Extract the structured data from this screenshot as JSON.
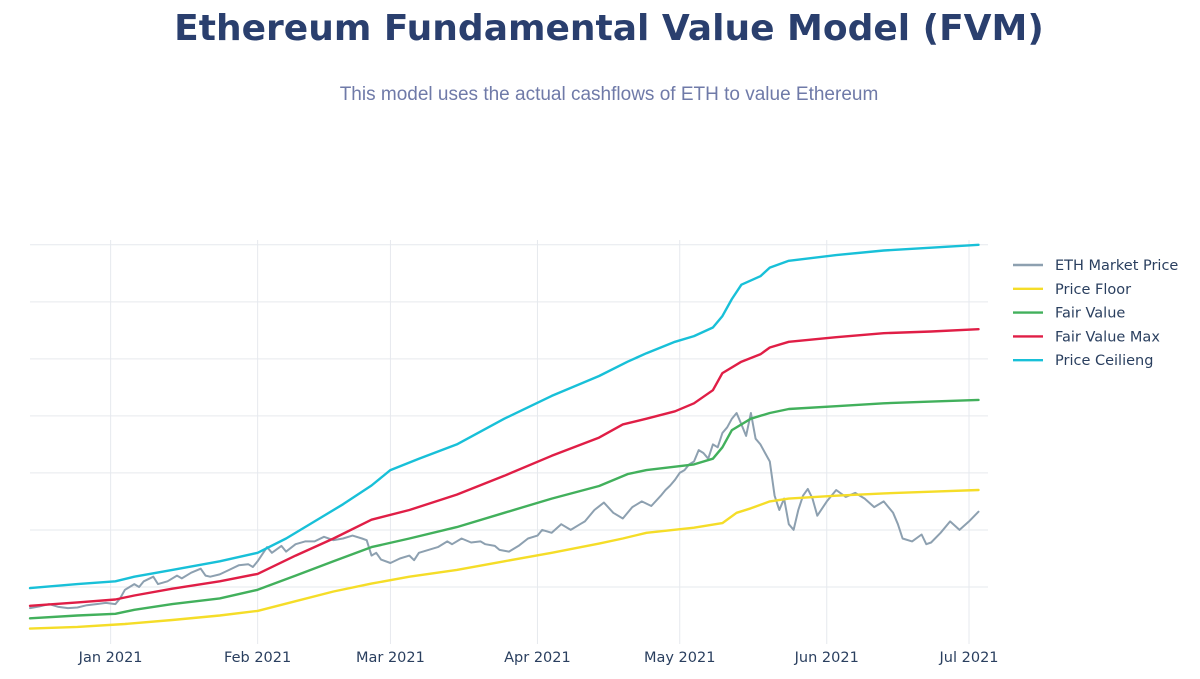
{
  "header": {
    "title": "Ethereum Fundamental Value Model (FVM)",
    "subtitle": "This model uses the actual cashflows of ETH to value Ethereum"
  },
  "chart_data": {
    "type": "line",
    "title": "Ethereum Fundamental Value Model (FVM)",
    "subtitle": "This model uses the actual cashflows of ETH to value Ethereum",
    "xlabel": "",
    "ylabel": "",
    "x_start": "2020-12-15",
    "x_end": "2021-07-05",
    "x_range_days": [
      0,
      202
    ],
    "ylim": [
      0,
      7.4
    ],
    "grid": true,
    "legend_position": "right",
    "x_ticks": [
      {
        "label": "Jan 2021",
        "day": 17
      },
      {
        "label": "Feb 2021",
        "day": 48
      },
      {
        "label": "Mar 2021",
        "day": 76
      },
      {
        "label": "Apr 2021",
        "day": 107
      },
      {
        "label": "May 2021",
        "day": 137
      },
      {
        "label": "Jun 2021",
        "day": 168
      },
      {
        "label": "Jul 2021",
        "day": 198
      }
    ],
    "y_grid_values": [
      1,
      2,
      3,
      4,
      5,
      6,
      7
    ],
    "series": [
      {
        "name": "ETH Market Price",
        "color": "#8da0b0",
        "points": [
          [
            0,
            0.63
          ],
          [
            2,
            0.66
          ],
          [
            4,
            0.7
          ],
          [
            6,
            0.65
          ],
          [
            8,
            0.63
          ],
          [
            10,
            0.64
          ],
          [
            12,
            0.68
          ],
          [
            14,
            0.7
          ],
          [
            16,
            0.72
          ],
          [
            18,
            0.7
          ],
          [
            19,
            0.8
          ],
          [
            20,
            0.95
          ],
          [
            22,
            1.05
          ],
          [
            23,
            1.0
          ],
          [
            24,
            1.1
          ],
          [
            26,
            1.18
          ],
          [
            27,
            1.05
          ],
          [
            29,
            1.1
          ],
          [
            31,
            1.2
          ],
          [
            32,
            1.15
          ],
          [
            34,
            1.25
          ],
          [
            36,
            1.32
          ],
          [
            37,
            1.2
          ],
          [
            38,
            1.18
          ],
          [
            40,
            1.22
          ],
          [
            42,
            1.3
          ],
          [
            44,
            1.38
          ],
          [
            46,
            1.4
          ],
          [
            47,
            1.35
          ],
          [
            48,
            1.45
          ],
          [
            50,
            1.7
          ],
          [
            51,
            1.6
          ],
          [
            53,
            1.72
          ],
          [
            54,
            1.62
          ],
          [
            56,
            1.75
          ],
          [
            58,
            1.8
          ],
          [
            60,
            1.8
          ],
          [
            62,
            1.88
          ],
          [
            64,
            1.82
          ],
          [
            66,
            1.85
          ],
          [
            68,
            1.9
          ],
          [
            70,
            1.85
          ],
          [
            71,
            1.82
          ],
          [
            72,
            1.55
          ],
          [
            73,
            1.6
          ],
          [
            74,
            1.48
          ],
          [
            76,
            1.42
          ],
          [
            78,
            1.5
          ],
          [
            80,
            1.55
          ],
          [
            81,
            1.47
          ],
          [
            82,
            1.6
          ],
          [
            84,
            1.65
          ],
          [
            86,
            1.7
          ],
          [
            88,
            1.8
          ],
          [
            89,
            1.75
          ],
          [
            91,
            1.85
          ],
          [
            93,
            1.78
          ],
          [
            95,
            1.8
          ],
          [
            96,
            1.75
          ],
          [
            98,
            1.72
          ],
          [
            99,
            1.65
          ],
          [
            101,
            1.62
          ],
          [
            103,
            1.72
          ],
          [
            105,
            1.85
          ],
          [
            107,
            1.9
          ],
          [
            108,
            2.0
          ],
          [
            110,
            1.95
          ],
          [
            112,
            2.1
          ],
          [
            114,
            2.0
          ],
          [
            116,
            2.1
          ],
          [
            117,
            2.15
          ],
          [
            119,
            2.35
          ],
          [
            121,
            2.48
          ],
          [
            123,
            2.3
          ],
          [
            125,
            2.2
          ],
          [
            127,
            2.4
          ],
          [
            129,
            2.5
          ],
          [
            131,
            2.42
          ],
          [
            133,
            2.6
          ],
          [
            134,
            2.7
          ],
          [
            135,
            2.78
          ],
          [
            136,
            2.88
          ],
          [
            137,
            3.0
          ],
          [
            138,
            3.05
          ],
          [
            139,
            3.15
          ],
          [
            140,
            3.2
          ],
          [
            141,
            3.4
          ],
          [
            142,
            3.35
          ],
          [
            143,
            3.25
          ],
          [
            144,
            3.5
          ],
          [
            145,
            3.45
          ],
          [
            146,
            3.7
          ],
          [
            147,
            3.8
          ],
          [
            148,
            3.95
          ],
          [
            149,
            4.05
          ],
          [
            150,
            3.85
          ],
          [
            151,
            3.65
          ],
          [
            152,
            4.05
          ],
          [
            153,
            3.6
          ],
          [
            154,
            3.5
          ],
          [
            155,
            3.35
          ],
          [
            156,
            3.2
          ],
          [
            157,
            2.6
          ],
          [
            158,
            2.35
          ],
          [
            159,
            2.55
          ],
          [
            160,
            2.1
          ],
          [
            161,
            2.0
          ],
          [
            162,
            2.35
          ],
          [
            163,
            2.6
          ],
          [
            164,
            2.72
          ],
          [
            165,
            2.55
          ],
          [
            166,
            2.25
          ],
          [
            168,
            2.5
          ],
          [
            170,
            2.7
          ],
          [
            172,
            2.58
          ],
          [
            174,
            2.65
          ],
          [
            176,
            2.55
          ],
          [
            178,
            2.4
          ],
          [
            180,
            2.5
          ],
          [
            182,
            2.3
          ],
          [
            183,
            2.1
          ],
          [
            184,
            1.85
          ],
          [
            186,
            1.8
          ],
          [
            188,
            1.92
          ],
          [
            189,
            1.75
          ],
          [
            190,
            1.78
          ],
          [
            192,
            1.95
          ],
          [
            194,
            2.15
          ],
          [
            196,
            2.0
          ],
          [
            198,
            2.15
          ],
          [
            200,
            2.32
          ]
        ]
      },
      {
        "name": "Price Floor",
        "color": "#f5dd28",
        "points": [
          [
            0,
            0.27
          ],
          [
            10,
            0.3
          ],
          [
            20,
            0.35
          ],
          [
            30,
            0.42
          ],
          [
            40,
            0.5
          ],
          [
            48,
            0.58
          ],
          [
            56,
            0.75
          ],
          [
            64,
            0.92
          ],
          [
            72,
            1.06
          ],
          [
            80,
            1.18
          ],
          [
            90,
            1.3
          ],
          [
            100,
            1.45
          ],
          [
            110,
            1.6
          ],
          [
            120,
            1.76
          ],
          [
            125,
            1.85
          ],
          [
            130,
            1.95
          ],
          [
            140,
            2.04
          ],
          [
            146,
            2.12
          ],
          [
            149,
            2.3
          ],
          [
            152,
            2.38
          ],
          [
            156,
            2.5
          ],
          [
            160,
            2.55
          ],
          [
            170,
            2.6
          ],
          [
            180,
            2.64
          ],
          [
            190,
            2.67
          ],
          [
            200,
            2.7
          ]
        ]
      },
      {
        "name": "Fair Value",
        "color": "#42b05c",
        "points": [
          [
            0,
            0.45
          ],
          [
            10,
            0.5
          ],
          [
            18,
            0.53
          ],
          [
            22,
            0.6
          ],
          [
            30,
            0.7
          ],
          [
            40,
            0.8
          ],
          [
            48,
            0.95
          ],
          [
            56,
            1.2
          ],
          [
            64,
            1.45
          ],
          [
            72,
            1.7
          ],
          [
            80,
            1.85
          ],
          [
            90,
            2.05
          ],
          [
            100,
            2.3
          ],
          [
            110,
            2.55
          ],
          [
            120,
            2.77
          ],
          [
            126,
            2.98
          ],
          [
            130,
            3.05
          ],
          [
            140,
            3.15
          ],
          [
            144,
            3.25
          ],
          [
            146,
            3.45
          ],
          [
            148,
            3.75
          ],
          [
            152,
            3.95
          ],
          [
            156,
            4.05
          ],
          [
            160,
            4.12
          ],
          [
            170,
            4.17
          ],
          [
            180,
            4.22
          ],
          [
            190,
            4.25
          ],
          [
            200,
            4.28
          ]
        ]
      },
      {
        "name": "Fair Value Max",
        "color": "#e01e46",
        "points": [
          [
            0,
            0.67
          ],
          [
            10,
            0.73
          ],
          [
            18,
            0.78
          ],
          [
            22,
            0.85
          ],
          [
            30,
            0.97
          ],
          [
            40,
            1.1
          ],
          [
            48,
            1.23
          ],
          [
            56,
            1.55
          ],
          [
            64,
            1.85
          ],
          [
            72,
            2.18
          ],
          [
            80,
            2.35
          ],
          [
            90,
            2.62
          ],
          [
            100,
            2.95
          ],
          [
            110,
            3.3
          ],
          [
            120,
            3.62
          ],
          [
            125,
            3.85
          ],
          [
            130,
            3.95
          ],
          [
            136,
            4.08
          ],
          [
            140,
            4.22
          ],
          [
            144,
            4.45
          ],
          [
            146,
            4.75
          ],
          [
            150,
            4.95
          ],
          [
            154,
            5.08
          ],
          [
            156,
            5.2
          ],
          [
            160,
            5.3
          ],
          [
            170,
            5.38
          ],
          [
            180,
            5.45
          ],
          [
            190,
            5.48
          ],
          [
            200,
            5.52
          ]
        ]
      },
      {
        "name": "Price Ceilieng",
        "color": "#18c0d8",
        "points": [
          [
            0,
            0.98
          ],
          [
            10,
            1.05
          ],
          [
            18,
            1.1
          ],
          [
            22,
            1.18
          ],
          [
            30,
            1.3
          ],
          [
            40,
            1.45
          ],
          [
            48,
            1.6
          ],
          [
            54,
            1.85
          ],
          [
            60,
            2.15
          ],
          [
            66,
            2.45
          ],
          [
            72,
            2.78
          ],
          [
            76,
            3.05
          ],
          [
            82,
            3.25
          ],
          [
            90,
            3.5
          ],
          [
            100,
            3.95
          ],
          [
            110,
            4.35
          ],
          [
            120,
            4.7
          ],
          [
            126,
            4.95
          ],
          [
            130,
            5.1
          ],
          [
            136,
            5.3
          ],
          [
            140,
            5.4
          ],
          [
            144,
            5.55
          ],
          [
            146,
            5.75
          ],
          [
            148,
            6.05
          ],
          [
            150,
            6.3
          ],
          [
            154,
            6.45
          ],
          [
            156,
            6.6
          ],
          [
            160,
            6.72
          ],
          [
            170,
            6.82
          ],
          [
            180,
            6.9
          ],
          [
            190,
            6.95
          ],
          [
            200,
            7.0
          ]
        ]
      }
    ]
  }
}
